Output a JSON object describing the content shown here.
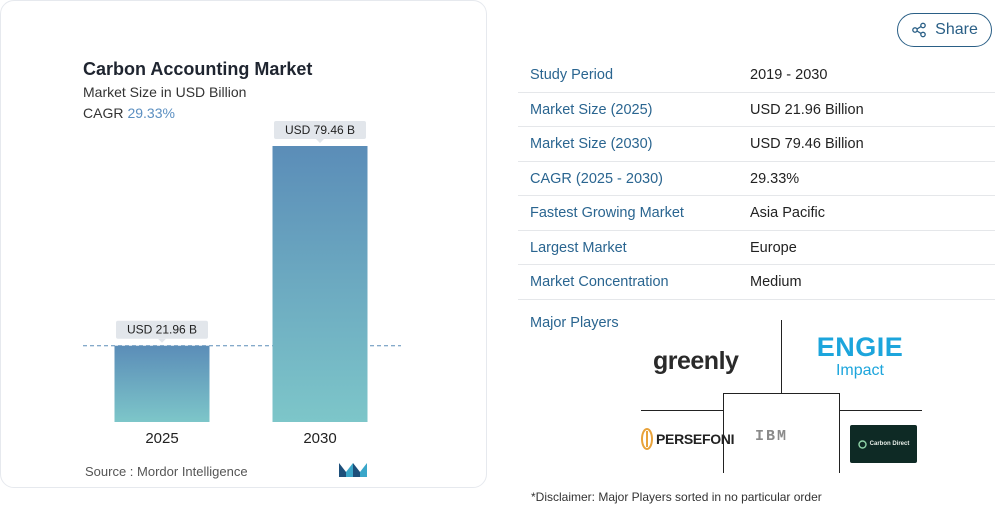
{
  "chart_card": {
    "title": "Carbon Accounting Market",
    "subtitle": "Market Size in USD Billion",
    "cagr_label": "CAGR",
    "cagr_value": "29.33%",
    "source": "Source :  Mordor Intelligence",
    "logo_icon": "mordor-intelligence-logo"
  },
  "chart_data": {
    "type": "bar",
    "categories": [
      "2025",
      "2030"
    ],
    "values": [
      21.96,
      79.46
    ],
    "data_labels": [
      "USD 21.96 B",
      "USD 79.46 B"
    ],
    "title": "Carbon Accounting Market",
    "subtitle": "Market Size in USD Billion",
    "ylim": [
      0,
      79.46
    ],
    "reference_line": 21.96,
    "grid": false,
    "colors": {
      "bar_top": "#5b8db8",
      "bar_bottom": "#7dc6c9",
      "label_bg": "#e2e6eb",
      "ref_line": "#5b8db8"
    }
  },
  "share": {
    "label": "Share",
    "icon": "share-icon"
  },
  "facts": [
    {
      "key": "Study Period",
      "value": "2019 - 2030"
    },
    {
      "key": "Market Size (2025)",
      "value": "USD 21.96 Billion"
    },
    {
      "key": "Market Size (2030)",
      "value": "USD 79.46 Billion"
    },
    {
      "key": "CAGR (2025 - 2030)",
      "value": "29.33%"
    },
    {
      "key": "Fastest Growing Market",
      "value": "Asia Pacific"
    },
    {
      "key": "Largest Market",
      "value": "Europe"
    },
    {
      "key": "Market Concentration",
      "value": "Medium"
    }
  ],
  "players": {
    "label": "Major Players",
    "greenly": "greenly",
    "engie_1": "ENGIE",
    "engie_2": "Impact",
    "persefoni": "PERSEFONI",
    "ibm": "IBM",
    "carbon_direct": "Carbon Direct"
  },
  "disclaimer": "*Disclaimer: Major Players sorted in no particular order",
  "colors": {
    "accent": "#2a6590",
    "brand_blue": "#1ca5dc"
  }
}
